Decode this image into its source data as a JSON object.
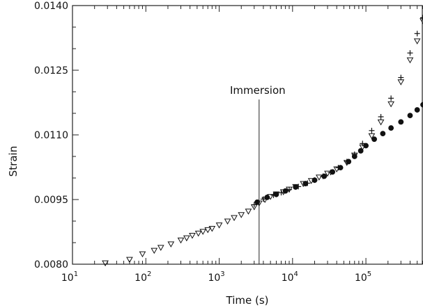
{
  "chart_data": {
    "type": "scatter",
    "title": "",
    "xlabel": "Time (s)",
    "ylabel": "Strain",
    "x_scale": "log",
    "xlim": [
      10,
      600000
    ],
    "ylim": [
      0.008,
      0.014
    ],
    "grid": false,
    "x_tick_values": [
      10,
      100,
      1000,
      10000,
      100000
    ],
    "x_tick_labels": [
      {
        "base": "10",
        "exp": "1"
      },
      {
        "base": "10",
        "exp": "2"
      },
      {
        "base": "10",
        "exp": "3"
      },
      {
        "base": "10",
        "exp": "4"
      },
      {
        "base": "10",
        "exp": "5"
      }
    ],
    "y_tick_values": [
      0.008,
      0.0095,
      0.011,
      0.0125,
      0.014
    ],
    "y_tick_labels": [
      "0.0080",
      "0.0095",
      "0.0110",
      "0.0125",
      "0.0140"
    ],
    "annotations": [
      {
        "text": "Immersion",
        "x": 3500,
        "y": 0.01195
      }
    ],
    "series": [
      {
        "marker": "triangle-down",
        "x": [
          28,
          60,
          90,
          130,
          160,
          220,
          300,
          360,
          430,
          520,
          600,
          700,
          800,
          1000,
          1300,
          1600,
          2000,
          2500,
          3000,
          3500,
          4200,
          5000,
          6000,
          7500,
          9000,
          11000,
          14000,
          18000,
          23000,
          30000,
          40000,
          55000,
          70000,
          90000,
          120000,
          160000,
          220000,
          300000,
          400000,
          500000,
          600000
        ],
        "y": [
          0.00803,
          0.00811,
          0.00824,
          0.00832,
          0.00839,
          0.00847,
          0.00856,
          0.00861,
          0.00867,
          0.00872,
          0.00876,
          0.0088,
          0.00883,
          0.00891,
          0.009,
          0.00908,
          0.00915,
          0.00923,
          0.00933,
          0.00942,
          0.0095,
          0.00957,
          0.00963,
          0.00968,
          0.00974,
          0.0098,
          0.00987,
          0.00994,
          0.01002,
          0.01011,
          0.01021,
          0.01036,
          0.01053,
          0.01072,
          0.01098,
          0.0113,
          0.01172,
          0.01223,
          0.01274,
          0.01318,
          0.01365
        ]
      },
      {
        "marker": "plus",
        "x": [
          3000,
          4000,
          5500,
          7000,
          9000,
          12000,
          16000,
          20000,
          26000,
          33000,
          42000,
          55000,
          70000,
          90000,
          120000,
          160000,
          220000,
          300000,
          400000,
          500000,
          600000
        ],
        "y": [
          0.00938,
          0.00951,
          0.0096,
          0.00966,
          0.00973,
          0.0098,
          0.00988,
          0.00995,
          0.01004,
          0.01013,
          0.01024,
          0.01038,
          0.01055,
          0.0108,
          0.0111,
          0.01142,
          0.01185,
          0.01233,
          0.0129,
          0.01335,
          0.01372
        ]
      },
      {
        "marker": "filled-circle",
        "x": [
          3300,
          4500,
          6000,
          8000,
          11000,
          15000,
          20000,
          27000,
          35000,
          45000,
          58000,
          70000,
          85000,
          100000,
          130000,
          170000,
          220000,
          300000,
          400000,
          500000,
          600000
        ],
        "y": [
          0.00944,
          0.00955,
          0.00962,
          0.0097,
          0.00979,
          0.00987,
          0.00995,
          0.01004,
          0.01014,
          0.01024,
          0.01038,
          0.0105,
          0.01063,
          0.01075,
          0.0109,
          0.01103,
          0.01116,
          0.0113,
          0.01145,
          0.01158,
          0.0117
        ]
      }
    ]
  }
}
